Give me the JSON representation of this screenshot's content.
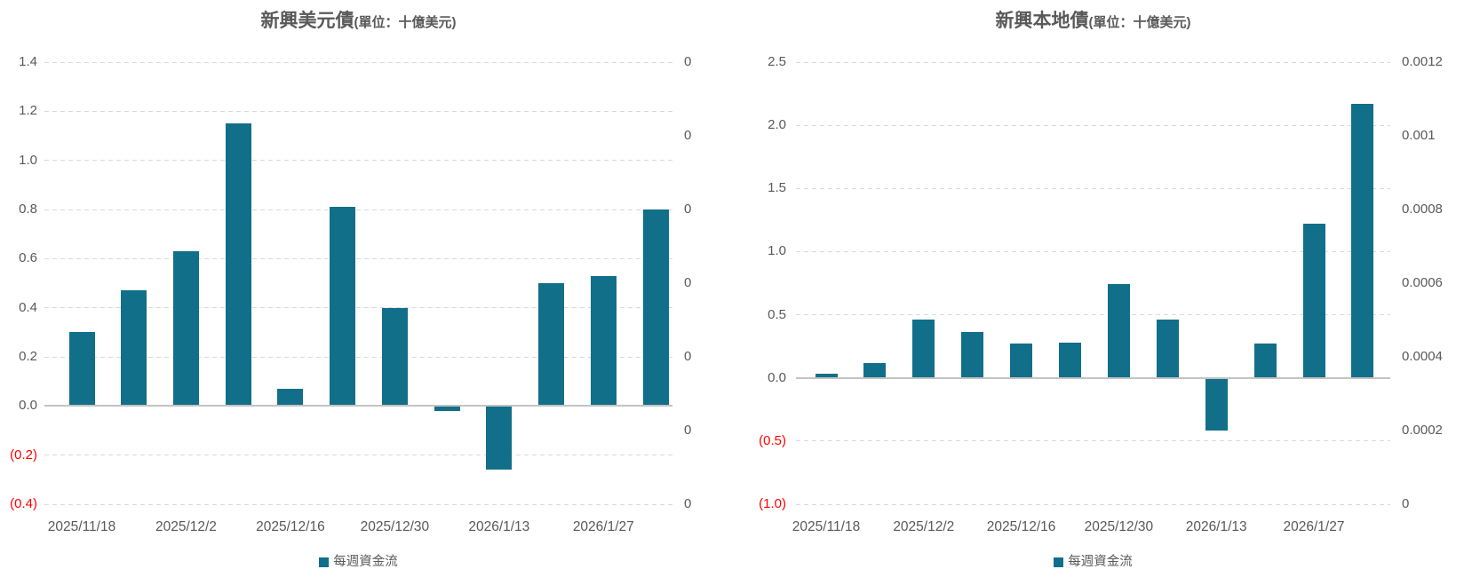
{
  "colors": {
    "bar": "#116F8A",
    "text": "#595959",
    "negative_tick": "#FF0000",
    "gridline": "#D9D9D9",
    "axis_line": "#C3C3C3",
    "background": "#FFFFFF"
  },
  "chart_data": [
    {
      "type": "bar",
      "title_main": "新興美元債",
      "title_unit": "(單位：十億美元)",
      "legend_label": "每週資金流",
      "legend_position": "bottom",
      "grid": true,
      "values": [
        0.3,
        0.47,
        0.63,
        1.15,
        0.07,
        0.81,
        0.4,
        -0.02,
        -0.26,
        0.5,
        0.53,
        0.8
      ],
      "x_visible_labels": [
        "2025/11/18",
        "2025/12/2",
        "2025/12/16",
        "2025/12/30",
        "2026/1/13",
        "2026/1/27"
      ],
      "x_visible_label_bar_indices": [
        0,
        2,
        4,
        6,
        8,
        10
      ],
      "y_left_axis": {
        "tick_labels": [
          "1.4",
          "1.2",
          "1.0",
          "0.8",
          "0.6",
          "0.4",
          "0.2",
          "0.0",
          "(0.2)",
          "(0.4)"
        ],
        "tick_values": [
          1.4,
          1.2,
          1.0,
          0.8,
          0.6,
          0.4,
          0.2,
          0.0,
          -0.2,
          -0.4
        ]
      },
      "y_right_axis": {
        "tick_labels": [
          "0",
          "0",
          "0",
          "0",
          "0",
          "0",
          "0"
        ]
      },
      "ylim": [
        -0.4,
        1.4
      ]
    },
    {
      "type": "bar",
      "title_main": "新興本地債",
      "title_unit": "(單位：十億美元)",
      "legend_label": "每週資金流",
      "legend_position": "bottom",
      "grid": true,
      "values": [
        0.03,
        0.12,
        0.46,
        0.36,
        0.27,
        0.28,
        0.74,
        0.46,
        -0.42,
        0.27,
        1.22,
        2.17
      ],
      "x_visible_labels": [
        "2025/11/18",
        "2025/12/2",
        "2025/12/16",
        "2025/12/30",
        "2026/1/13",
        "2026/1/27"
      ],
      "x_visible_label_bar_indices": [
        0,
        2,
        4,
        6,
        8,
        10
      ],
      "y_left_axis": {
        "tick_labels": [
          "2.5",
          "2.0",
          "1.5",
          "1.0",
          "0.5",
          "0.0",
          "(0.5)",
          "(1.0)"
        ],
        "tick_values": [
          2.5,
          2.0,
          1.5,
          1.0,
          0.5,
          0.0,
          -0.5,
          -1.0
        ]
      },
      "y_right_axis": {
        "tick_labels": [
          "0.0012",
          "0.001",
          "0.0008",
          "0.0006",
          "0.0004",
          "0.0002",
          "0"
        ]
      },
      "ylim": [
        -1.0,
        2.5
      ]
    }
  ]
}
